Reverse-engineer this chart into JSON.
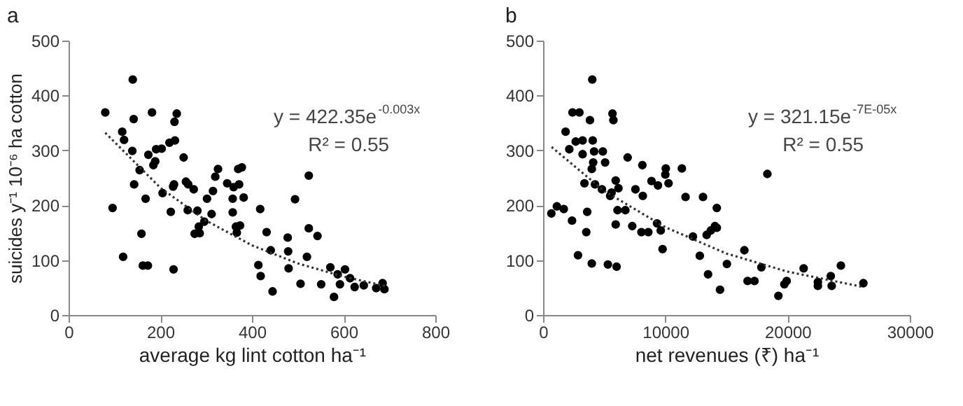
{
  "chart_data": [
    {
      "type": "scatter",
      "title": "a",
      "xlabel": "average kg lint cotton ha⁻¹",
      "ylabel": "suicides y⁻¹ 10⁻⁶ ha cotton",
      "xlim": [
        0,
        800
      ],
      "xticks": [
        0,
        200,
        400,
        600,
        800
      ],
      "ylim": [
        0,
        500
      ],
      "yticks": [
        0,
        100,
        200,
        300,
        400,
        500
      ],
      "marker": "circle",
      "grid": false,
      "annotations": [
        "y = 422.35e$^{-0.003x}$",
        "R² = 0.55"
      ],
      "series": [
        {
          "color": "#000000",
          "x": [
            80,
            96,
            117,
            121,
            119,
            140,
            142,
            139,
            143,
            155,
            159,
            162,
            173,
            168,
            174,
            182,
            185,
            189,
            191,
            203,
            205,
            220,
            223,
            228,
            230,
            231,
            232,
            236,
            229,
            251,
            256,
            261,
            260,
            273,
            275,
            281,
            284,
            286,
            296,
            302,
            312,
            315,
            320,
            326,
            346,
            358,
            358,
            360,
            365,
            367,
            370,
            372,
            374,
            378,
            382,
            418,
            414,
            419,
            432,
            441,
            445,
            478,
            479,
            480,
            494,
            506,
            520,
            524,
            524,
            543,
            551,
            571,
            579,
            587,
            592,
            603,
            614,
            624,
            644,
            671,
            685,
            689
          ],
          "values": [
            369,
            195,
            334,
            319,
            106,
            429,
            357,
            299,
            238,
            264,
            148,
            90,
            90,
            212,
            292,
            369,
            273,
            280,
            302,
            303,
            222,
            314,
            188,
            234,
            238,
            352,
            318,
            367,
            83,
            287,
            243,
            238,
            191,
            229,
            148,
            190,
            161,
            149,
            170,
            212,
            184,
            226,
            252,
            266,
            240,
            212,
            187,
            233,
            161,
            150,
            266,
            238,
            163,
            269,
            214,
            193,
            91,
            71,
            151,
            118,
            43,
            141,
            116,
            85,
            211,
            57,
            106,
            254,
            158,
            144,
            56,
            87,
            33,
            74,
            56,
            83,
            67,
            51,
            54,
            49,
            58,
            47
          ]
        },
        {
          "type": "line",
          "marker": "none",
          "line_style": "dotted",
          "color": "#333333",
          "x": [
            80,
            200,
            300,
            400,
            500,
            600,
            690
          ],
          "values": [
            332,
            232,
            172,
            127,
            94,
            70,
            53
          ]
        }
      ]
    },
    {
      "type": "scatter",
      "title": "b",
      "xlabel": "net revenues (₹) ha⁻¹",
      "xlim": [
        0,
        30000
      ],
      "xticks": [
        0,
        10000,
        20000,
        30000
      ],
      "ylim": [
        0,
        500
      ],
      "yticks": [
        0,
        100,
        200,
        300,
        400,
        500
      ],
      "marker": "circle",
      "grid": false,
      "annotations": [
        "y = 321.15e$^{-7E-05x}$",
        "R² = 0.55"
      ],
      "series": [
        {
          "color": "#000000",
          "x": [
            677,
            1128,
            1692,
            1842,
            2143,
            2368,
            2406,
            2669,
            2857,
            2970,
            3233,
            3233,
            3383,
            3609,
            3534,
            3835,
            3985,
            4023,
            3985,
            4060,
            4173,
            4248,
            4098,
            4887,
            4812,
            5075,
            5301,
            5489,
            5602,
            5677,
            5752,
            5940,
            5940,
            6015,
            6165,
            6090,
            6729,
            6917,
            7293,
            7556,
            8045,
            8120,
            8158,
            8609,
            8872,
            9398,
            9323,
            9624,
            9774,
            10000,
            10038,
            10263,
            11353,
            11654,
            12256,
            12820,
            13083,
            13496,
            13383,
            13722,
            14060,
            14211,
            14211,
            14474,
            15038,
            16466,
            16729,
            17293,
            17857,
            18346,
            19248,
            19737,
            19925,
            21316,
            22481,
            22481,
            23534,
            23609,
            24361,
            26203
          ],
          "values": [
            185,
            198,
            193,
            334,
            302,
            172,
            369,
            316,
            109,
            369,
            318,
            293,
            240,
            188,
            151,
            355,
            94,
            429,
            266,
            318,
            298,
            238,
            278,
            298,
            229,
            278,
            92,
            217,
            223,
            367,
            355,
            245,
            165,
            88,
            231,
            191,
            191,
            287,
            162,
            229,
            151,
            273,
            217,
            151,
            244,
            236,
            167,
            154,
            120,
            256,
            267,
            240,
            267,
            215,
            143,
            108,
            215,
            74,
            146,
            154,
            162,
            195,
            159,
            46,
            93,
            118,
            62,
            62,
            87,
            257,
            35,
            56,
            62,
            85,
            60,
            53,
            71,
            53,
            90,
            58
          ]
        },
        {
          "type": "line",
          "marker": "none",
          "line_style": "dotted",
          "color": "#333333",
          "x": [
            700,
            5000,
            10000,
            15000,
            20000,
            26200
          ],
          "values": [
            306,
            226,
            160,
            112,
            79,
            51
          ]
        }
      ]
    }
  ]
}
